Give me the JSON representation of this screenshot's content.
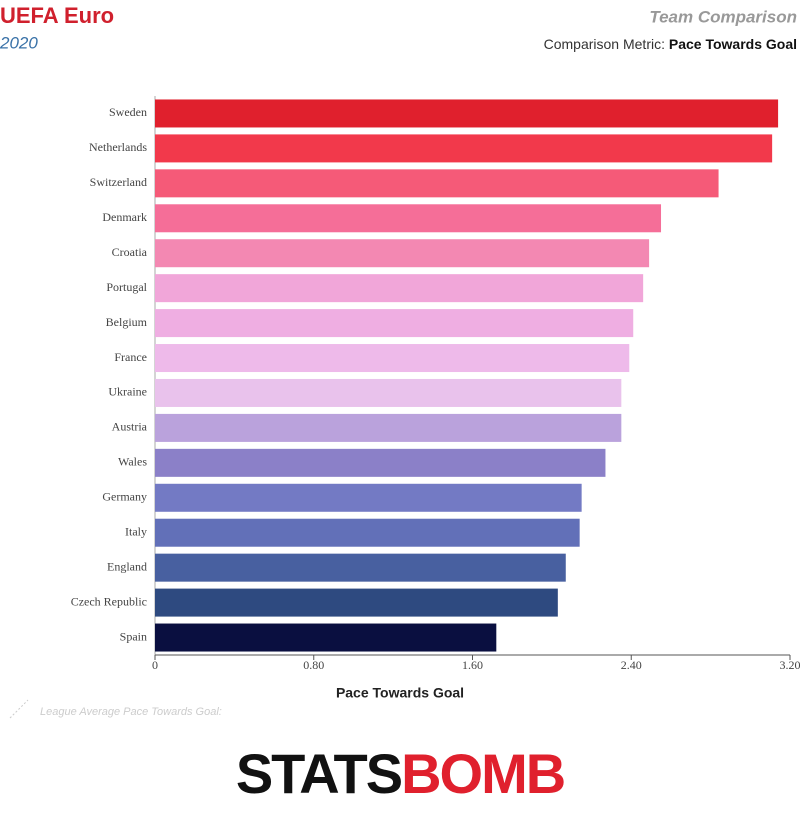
{
  "chart_data": {
    "type": "barh",
    "title": "UEFA Euro",
    "subtitle": "2020",
    "header_right": "Team Comparison",
    "metric_label": "Comparison Metric:",
    "metric_value": "Pace Towards Goal",
    "x_label": "Pace Towards Goal",
    "note": "League Average Pace Towards Goal:",
    "logo": [
      "STATS",
      "BOMB"
    ],
    "categories": [
      "Sweden",
      "Netherlands",
      "Switzerland",
      "Denmark",
      "Croatia",
      "Portugal",
      "Belgium",
      "France",
      "Ukraine",
      "Austria",
      "Wales",
      "Germany",
      "Italy",
      "England",
      "Czech Republic",
      "Spain"
    ],
    "values": [
      3.14,
      3.11,
      2.84,
      2.55,
      2.49,
      2.46,
      2.41,
      2.39,
      2.35,
      2.35,
      2.27,
      2.15,
      2.14,
      2.07,
      2.03,
      1.72
    ],
    "colors": [
      "#e0202d",
      "#f2394b",
      "#f55a78",
      "#f56e98",
      "#f388b2",
      "#f1a6d9",
      "#efaee2",
      "#eebaea",
      "#e9c2ec",
      "#baa2dc",
      "#8b80c8",
      "#737ac4",
      "#6270b8",
      "#4860a0",
      "#2e4a80",
      "#0a0f40"
    ],
    "xlim": [
      0,
      3.2
    ],
    "xticks": [
      0,
      {
        "value": 0.8,
        "label": "0.80"
      },
      {
        "value": 1.6,
        "label": "1.60"
      },
      {
        "value": 2.4,
        "label": "2.40"
      },
      {
        "value": 3.2,
        "label": "3.20"
      }
    ]
  }
}
